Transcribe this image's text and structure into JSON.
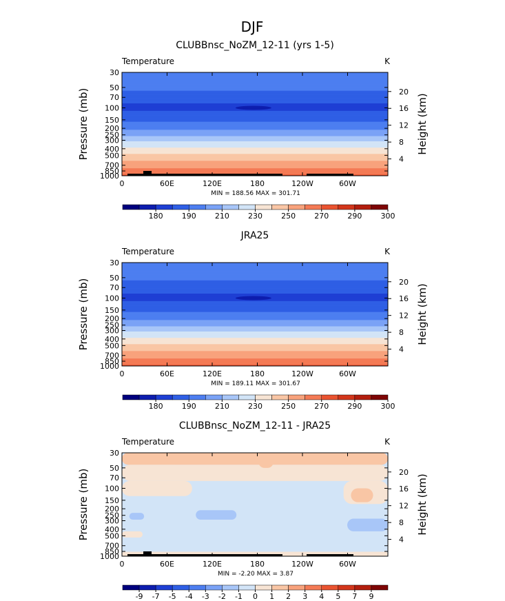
{
  "figure_title": "DJF",
  "chart_data": [
    {
      "type": "heatmap",
      "title": "CLUBBnsc_NoZM_12-11 (yrs 1-5)",
      "left_label": "Temperature",
      "right_label": "K",
      "ylabel": "Pressure (mb)",
      "ylabel_right": "Height (km)",
      "y_ticks": [
        "30",
        "50",
        "70",
        "100",
        "150",
        "200",
        "250",
        "300",
        "400",
        "500",
        "700",
        "850",
        "1000"
      ],
      "y_right_ticks": [
        "20",
        "16",
        "12",
        "8",
        "4"
      ],
      "x_ticks": [
        "0",
        "60E",
        "120E",
        "180",
        "120W",
        "60W"
      ],
      "stats": "MIN = 188.56   MAX = 301.71",
      "colorbar_labels": [
        "180",
        "190",
        "210",
        "230",
        "250",
        "270",
        "290",
        "300"
      ],
      "colorbar_colors": [
        "#00007e",
        "#0d1dae",
        "#1e3fd4",
        "#2f5fe5",
        "#4d7ef0",
        "#7aa2f6",
        "#a8c6f8",
        "#d2e4f7",
        "#f7e4d4",
        "#f9c6a5",
        "#f8a27c",
        "#f47a55",
        "#ea5330",
        "#d3361b",
        "#b31e0e",
        "#7e0505"
      ],
      "profile": [
        [
          30,
          218
        ],
        [
          50,
          213
        ],
        [
          70,
          204
        ],
        [
          100,
          197
        ],
        [
          150,
          208
        ],
        [
          200,
          218
        ],
        [
          250,
          228
        ],
        [
          300,
          238
        ],
        [
          400,
          252
        ],
        [
          500,
          262
        ],
        [
          700,
          276
        ],
        [
          850,
          284
        ],
        [
          1000,
          292
        ]
      ],
      "cold_core": {
        "lon": 178,
        "p": 100
      },
      "topography": true
    },
    {
      "type": "heatmap",
      "title": "JRA25",
      "left_label": "Temperature",
      "right_label": "K",
      "ylabel": "Pressure (mb)",
      "ylabel_right": "Height (km)",
      "y_ticks": [
        "30",
        "50",
        "70",
        "100",
        "150",
        "200",
        "250",
        "300",
        "400",
        "500",
        "700",
        "850",
        "1000"
      ],
      "y_right_ticks": [
        "20",
        "16",
        "12",
        "8",
        "4"
      ],
      "x_ticks": [
        "0",
        "60E",
        "120E",
        "180",
        "120W",
        "60W"
      ],
      "stats": "MIN = 189.11   MAX = 301.67",
      "colorbar_labels": [
        "180",
        "190",
        "210",
        "230",
        "250",
        "270",
        "290",
        "300"
      ],
      "colorbar_colors": [
        "#00007e",
        "#0d1dae",
        "#1e3fd4",
        "#2f5fe5",
        "#4d7ef0",
        "#7aa2f6",
        "#a8c6f8",
        "#d2e4f7",
        "#f7e4d4",
        "#f9c6a5",
        "#f8a27c",
        "#f47a55",
        "#ea5330",
        "#d3361b",
        "#b31e0e",
        "#7e0505"
      ],
      "profile": [
        [
          30,
          217
        ],
        [
          50,
          212
        ],
        [
          70,
          204
        ],
        [
          100,
          197
        ],
        [
          150,
          208
        ],
        [
          200,
          218
        ],
        [
          250,
          228
        ],
        [
          300,
          238
        ],
        [
          400,
          252
        ],
        [
          500,
          262
        ],
        [
          700,
          276
        ],
        [
          850,
          284
        ],
        [
          1000,
          292
        ]
      ],
      "cold_core": {
        "lon": 178,
        "p": 100
      },
      "topography": false
    },
    {
      "type": "heatmap",
      "title": "CLUBBnsc_NoZM_12-11 - JRA25",
      "left_label": "Temperature",
      "right_label": "K",
      "ylabel": "Pressure (mb)",
      "ylabel_right": "Height (km)",
      "y_ticks": [
        "30",
        "50",
        "70",
        "100",
        "150",
        "200",
        "250",
        "300",
        "400",
        "500",
        "700",
        "850",
        "1000"
      ],
      "y_right_ticks": [
        "20",
        "16",
        "12",
        "8",
        "4"
      ],
      "x_ticks": [
        "0",
        "60E",
        "120E",
        "180",
        "120W",
        "60W"
      ],
      "stats": "MIN =  -2.20   MAX =   3.87",
      "colorbar_labels": [
        "-9",
        "-7",
        "-5",
        "-4",
        "-3",
        "-2",
        "-1",
        "0",
        "1",
        "2",
        "3",
        "4",
        "5",
        "7",
        "9"
      ],
      "colorbar_colors": [
        "#00007e",
        "#0d1dae",
        "#1e3fd4",
        "#2f5fe5",
        "#4d7ef0",
        "#7aa2f6",
        "#a8c6f8",
        "#d2e4f7",
        "#f7e4d4",
        "#f9c6a5",
        "#f8a27c",
        "#f47a55",
        "#ea5330",
        "#d3361b",
        "#b31e0e",
        "#7e0505"
      ],
      "base_color": "#d2e4f7",
      "regions": [
        {
          "color": "#f9c6a5",
          "lon0": 0,
          "lon1": 360,
          "p0": 30,
          "p1": 45
        },
        {
          "color": "#f7e4d4",
          "lon0": 0,
          "lon1": 360,
          "p0": 45,
          "p1": 78
        },
        {
          "color": "#f7e4d4",
          "lon0": 0,
          "lon1": 95,
          "p0": 78,
          "p1": 130
        },
        {
          "color": "#f7e4d4",
          "lon0": 300,
          "lon1": 360,
          "p0": 78,
          "p1": 170
        },
        {
          "color": "#f9c6a5",
          "lon0": 185,
          "lon1": 205,
          "p0": 34,
          "p1": 50
        },
        {
          "color": "#f9c6a5",
          "lon0": 310,
          "lon1": 340,
          "p0": 100,
          "p1": 160
        },
        {
          "color": "#a8c6f8",
          "lon0": 10,
          "lon1": 30,
          "p0": 230,
          "p1": 290
        },
        {
          "color": "#a8c6f8",
          "lon0": 100,
          "lon1": 155,
          "p0": 210,
          "p1": 290
        },
        {
          "color": "#a8c6f8",
          "lon0": 305,
          "lon1": 360,
          "p0": 280,
          "p1": 430
        },
        {
          "color": "#f7e4d4",
          "lon0": 0,
          "lon1": 28,
          "p0": 430,
          "p1": 530
        },
        {
          "color": "#f7e4d4",
          "lon0": 0,
          "lon1": 360,
          "p0": 860,
          "p1": 1000
        }
      ],
      "topography": true
    }
  ]
}
